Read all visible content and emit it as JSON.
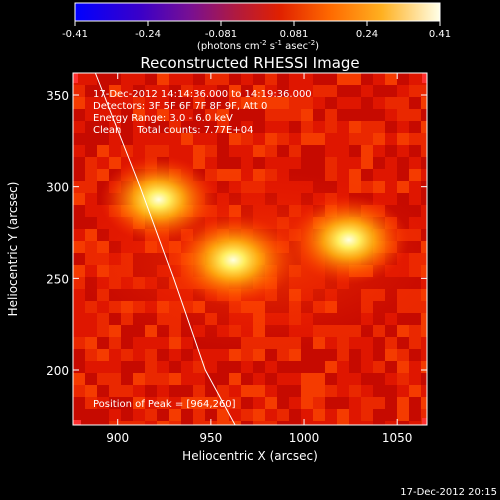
{
  "colorbar": {
    "ticks": [
      "-0.41",
      "-0.24",
      "-0.081",
      "0.081",
      "0.24",
      "0.41"
    ],
    "unit_label": "(photons cm",
    "unit_exp1": "-2",
    "unit_mid": " s",
    "unit_exp2": "-1",
    "unit_mid2": " asec",
    "unit_exp3": "-2",
    "unit_close": ")"
  },
  "plot": {
    "title": "Reconstructed RHESSI Image",
    "annotation_time": "17-Dec-2012 14:14:36.000 to 14:19:36.000",
    "annotation_detectors": "Detectors: 3F 5F 6F 7F 8F 9F, Att 0",
    "annotation_energy": "Energy Range: 3.0 - 6.0 keV",
    "annotation_clean": "Clean     Total counts: 7.77E+04",
    "peak_label": "Position of Peak = [964,260]",
    "footer_date": "17-Dec-2012 20:15"
  },
  "chart_data": {
    "type": "heatmap",
    "title": "Reconstructed RHESSI Image",
    "xlabel": "Heliocentric X (arcsec)",
    "ylabel": "Heliocentric Y (arcsec)",
    "xlim": [
      876,
      1066
    ],
    "ylim": [
      170,
      362
    ],
    "x_ticks": [
      900,
      950,
      1000,
      1050
    ],
    "y_ticks": [
      200,
      250,
      300,
      350
    ],
    "colorscale": "red-temperature",
    "colorbar_range": [
      -0.41,
      0.41
    ],
    "sources": [
      {
        "x": 922,
        "y": 293,
        "intensity": 0.95
      },
      {
        "x": 962,
        "y": 260,
        "intensity": 1.0
      },
      {
        "x": 1024,
        "y": 271,
        "intensity": 0.97
      }
    ],
    "peak": [
      964,
      260
    ],
    "limb_curve": [
      [
        888,
        362
      ],
      [
        912,
        300
      ],
      [
        930,
        250
      ],
      [
        947,
        200
      ],
      [
        963,
        170
      ]
    ]
  }
}
